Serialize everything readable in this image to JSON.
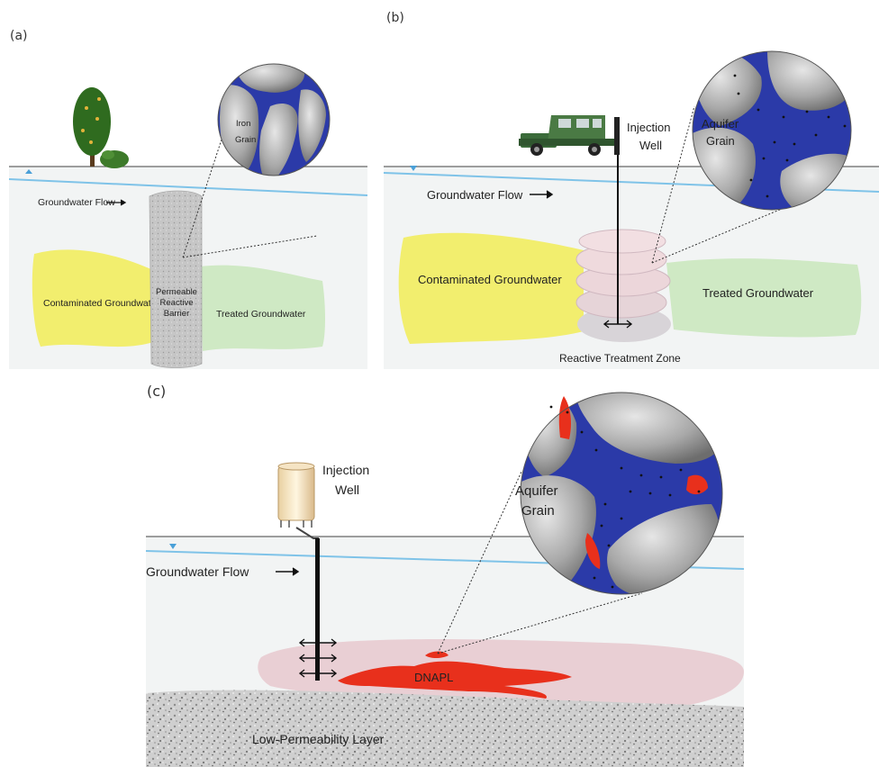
{
  "panel_a": {
    "letter": "(a)",
    "flow_label": "Groundwater Flow",
    "magnifier_label_line1": "Iron",
    "magnifier_label_line2": "Grain",
    "contaminated_label": "Contaminated Groundwater",
    "barrier_line1": "Permeable",
    "barrier_line2": "Reactive",
    "barrier_line3": "Barrier",
    "treated_label": "Treated Groundwater"
  },
  "panel_b": {
    "letter": "(b)",
    "well_line1": "Injection",
    "well_line2": "Well",
    "magnifier_label_line1": "Aquifer",
    "magnifier_label_line2": "Grain",
    "flow_label": "Groundwater Flow",
    "contaminated_label": "Contaminated Groundwater",
    "treated_label": "Treated Groundwater",
    "zone_label": "Reactive Treatment Zone"
  },
  "panel_c": {
    "letter": "(c)",
    "well_line1": "Injection",
    "well_line2": "Well",
    "magnifier_label_line1": "Aquifer",
    "magnifier_label_line2": "Grain",
    "flow_label": "Groundwater Flow",
    "dnapl_label": "DNAPL",
    "layer_label": "Low-Permeability Layer"
  },
  "colors": {
    "water_blue": "#2b3aa8",
    "contaminated": "#f2ee6e",
    "treated": "#cfe9c4",
    "plume_pink": "#e9cfd4",
    "dnapl_red": "#e8301c",
    "water_table": "#7fc3e8"
  }
}
